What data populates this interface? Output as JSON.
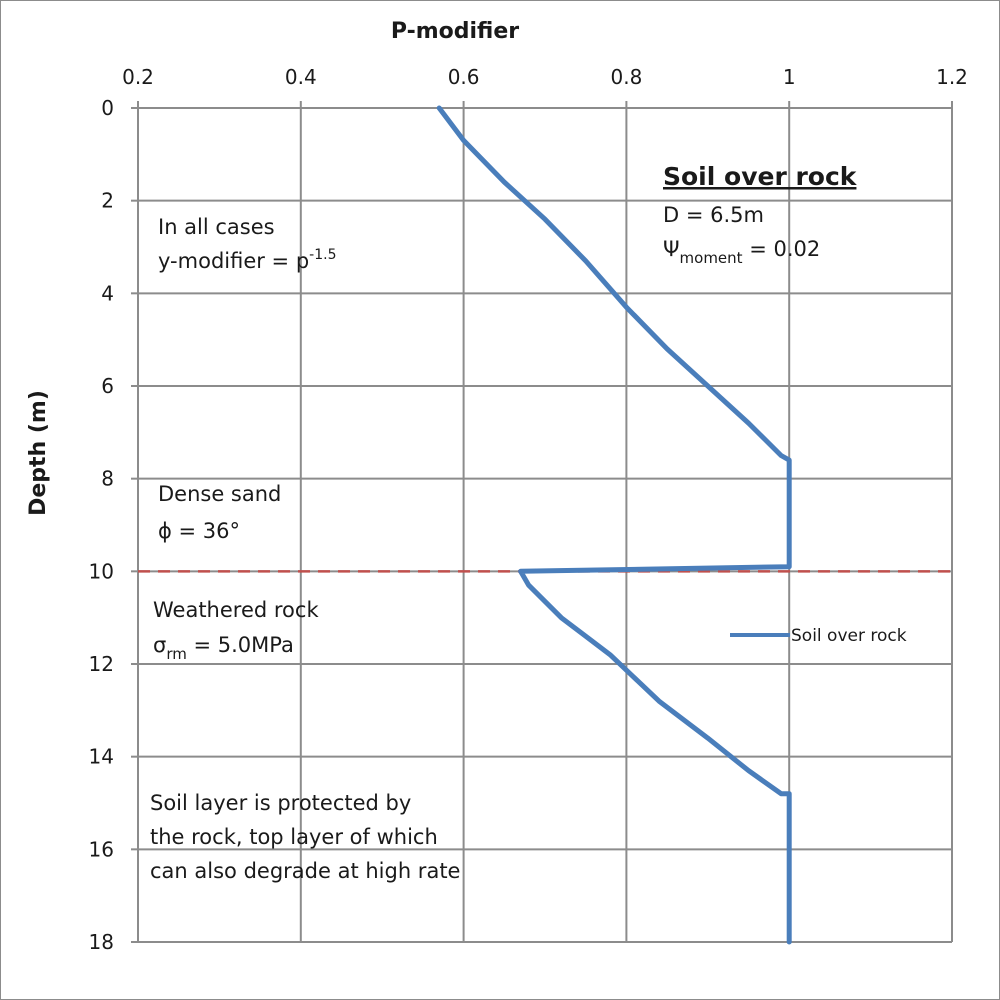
{
  "chart_data": {
    "type": "line",
    "title": "",
    "xlabel": "P-modifier",
    "ylabel": "Depth (m)",
    "x_axis_position": "top",
    "y_axis_inverted": true,
    "xlim": [
      0.2,
      1.2
    ],
    "ylim": [
      0,
      18
    ],
    "xticks": [
      "0.2",
      "0.4",
      "0.6",
      "0.8",
      "1",
      "1.2"
    ],
    "yticks": [
      "0",
      "2",
      "4",
      "6",
      "8",
      "10",
      "12",
      "14",
      "16",
      "18"
    ],
    "grid": true,
    "legend_position": "right",
    "series": [
      {
        "name": "Soil over rock",
        "color": "#4a7ebb",
        "points": [
          {
            "x": 0.57,
            "y": 0.0
          },
          {
            "x": 0.6,
            "y": 0.7
          },
          {
            "x": 0.65,
            "y": 1.6
          },
          {
            "x": 0.7,
            "y": 2.4
          },
          {
            "x": 0.75,
            "y": 3.3
          },
          {
            "x": 0.8,
            "y": 4.3
          },
          {
            "x": 0.85,
            "y": 5.2
          },
          {
            "x": 0.9,
            "y": 6.0
          },
          {
            "x": 0.95,
            "y": 6.8
          },
          {
            "x": 0.99,
            "y": 7.5
          },
          {
            "x": 1.0,
            "y": 7.6
          },
          {
            "x": 1.0,
            "y": 9.9
          },
          {
            "x": 0.67,
            "y": 10.0
          },
          {
            "x": 0.68,
            "y": 10.3
          },
          {
            "x": 0.72,
            "y": 11.0
          },
          {
            "x": 0.78,
            "y": 11.8
          },
          {
            "x": 0.84,
            "y": 12.8
          },
          {
            "x": 0.9,
            "y": 13.6
          },
          {
            "x": 0.95,
            "y": 14.3
          },
          {
            "x": 0.99,
            "y": 14.8
          },
          {
            "x": 1.0,
            "y": 14.8
          },
          {
            "x": 1.0,
            "y": 18.0
          }
        ]
      }
    ],
    "reference_lines": [
      {
        "orientation": "horizontal",
        "y": 10,
        "color": "#c0504d",
        "style": "dashed"
      }
    ]
  },
  "annotations": {
    "heading": "Soil over rock",
    "d_value": "D = 6.5m",
    "psi_symbol": "Ψ",
    "psi_subscript": "moment",
    "psi_value": " = 0.02",
    "cases_line1": "In all cases",
    "cases_line2": "y-modifier = p",
    "cases_exponent": "-1.5",
    "sand_line1": "Dense sand",
    "sand_line2": "ϕ = 36°",
    "rock_line1": "Weathered  rock",
    "rock_sigma": "σ",
    "rock_subscript": "rm",
    "rock_value": " = 5.0MPa",
    "protect_line1": "Soil layer is protected by",
    "protect_line2": "the rock, top layer of which",
    "protect_line3": "can also degrade at high rate"
  }
}
